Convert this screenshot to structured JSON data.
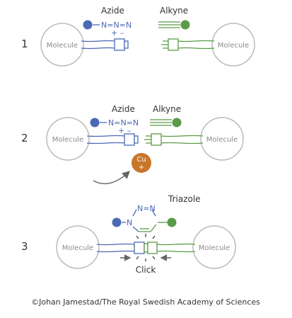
{
  "steps": [
    "1",
    "2",
    "3"
  ],
  "labels": {
    "azide": "Azide",
    "alkyne": "Alkyne",
    "triazole": "Triazole",
    "molecule": "Molecule",
    "click": "Click"
  },
  "chemistry": {
    "azide_formula": "N=N=N",
    "azide_charges": "+ –",
    "triazole_n_top": "N=N",
    "triazole_n_left": "N",
    "catalyst_symbol": "Cu",
    "catalyst_charge": "+"
  },
  "credit": "©Johan Jamestad/The Royal Swedish Academy of Sciences",
  "colors": {
    "blue": "#4a69b5",
    "green": "#5a9a48",
    "copper": "#c8762a",
    "circle_stroke": "#bbbbbb",
    "text": "#333333"
  }
}
